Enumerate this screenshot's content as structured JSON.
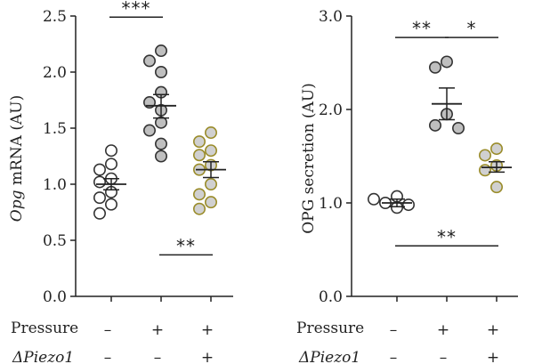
{
  "colors": {
    "axis": "#222222",
    "dot_gray": "#bfbfbf",
    "dot_white": "#ffffff",
    "dot_piezo": "#d0d0d0",
    "piezo_edge": "#9a8c2a",
    "dot_edge": "#333333"
  },
  "chart_data": [
    {
      "type": "scatter",
      "ylabel_italic": "Opg",
      "ylabel_rest": " mRNA (AU)",
      "ylim": [
        0,
        2.5
      ],
      "yticks": [
        "0.0",
        "0.5",
        "1.0",
        "1.5",
        "2.0",
        "2.5"
      ],
      "ytick_values": [
        0,
        0.5,
        1.0,
        1.5,
        2.0,
        2.5
      ],
      "groups": [
        {
          "style": "white",
          "values": [
            1.3,
            1.18,
            1.13,
            1.05,
            1.02,
            0.93,
            0.88,
            0.82,
            0.74
          ],
          "mean": 1.0,
          "sem_low": 0.95,
          "sem_high": 1.05
        },
        {
          "style": "gray",
          "values": [
            2.19,
            2.1,
            2.0,
            1.82,
            1.73,
            1.66,
            1.55,
            1.48,
            1.36,
            1.25
          ],
          "mean": 1.7,
          "sem_low": 1.59,
          "sem_high": 1.8
        },
        {
          "style": "piezo",
          "values": [
            1.46,
            1.38,
            1.3,
            1.26,
            1.17,
            1.13,
            1.0,
            0.91,
            0.84,
            0.78
          ],
          "mean": 1.13,
          "sem_low": 1.06,
          "sem_high": 1.2
        }
      ],
      "brackets": [
        {
          "from": 0,
          "to": 1,
          "y": 2.49,
          "label": "***",
          "label_pos": "above"
        },
        {
          "from": 1,
          "to": 2,
          "y": 0.37,
          "label": "**",
          "label_pos": "above"
        }
      ]
    },
    {
      "type": "scatter",
      "ylabel_italic": "",
      "ylabel_rest": "OPG secretion (AU)",
      "ylim": [
        0,
        3.0
      ],
      "yticks": [
        "0.0",
        "1.0",
        "2.0",
        "3.0"
      ],
      "ytick_values": [
        0,
        1.0,
        2.0,
        3.0
      ],
      "groups": [
        {
          "style": "white",
          "values": [
            1.07,
            1.04,
            1.0,
            0.98,
            0.95
          ],
          "mean": 1.0,
          "sem_low": 0.96,
          "sem_high": 1.04
        },
        {
          "style": "gray",
          "values": [
            2.51,
            2.45,
            1.95,
            1.83,
            1.8
          ],
          "mean": 2.06,
          "sem_low": 1.89,
          "sem_high": 2.23
        },
        {
          "style": "piezo",
          "values": [
            1.58,
            1.51,
            1.4,
            1.35,
            1.17
          ],
          "mean": 1.38,
          "sem_low": 1.33,
          "sem_high": 1.44
        }
      ],
      "brackets": [
        {
          "from": 0,
          "to": 1,
          "y": 2.77,
          "label": "**",
          "label_pos": "above"
        },
        {
          "from": 1,
          "to": 2,
          "y": 2.77,
          "label": "*",
          "label_pos": "above"
        },
        {
          "from": 0,
          "to": 2,
          "y": 0.54,
          "label": "**",
          "label_pos": "above"
        }
      ]
    }
  ],
  "conditions": {
    "pressure_label": "Pressure",
    "piezo_label": "ΔPiezo1",
    "pressure_values": [
      "–",
      "+",
      "+"
    ],
    "piezo_values": [
      "–",
      "–",
      "+"
    ]
  }
}
